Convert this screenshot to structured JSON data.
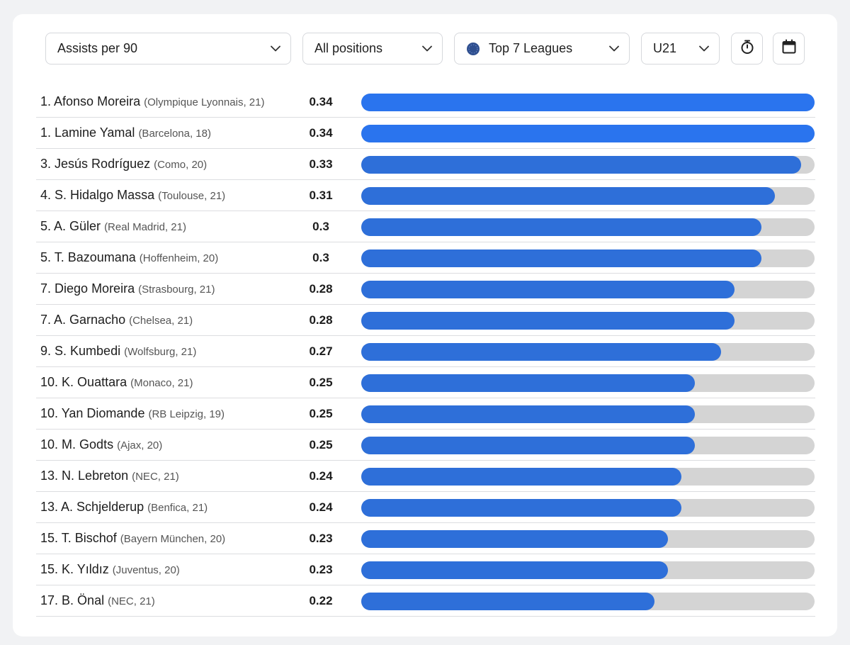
{
  "filters": {
    "metric": "Assists per 90",
    "position": "All positions",
    "league": "Top 7 Leagues",
    "age": "U21"
  },
  "icons": {
    "timer": "stopwatch-icon",
    "calendar": "calendar-icon",
    "league": "globe-icon",
    "dropdown": "chevron-down-icon"
  },
  "colors": {
    "bar_fill": "#2e6fd9",
    "bar_fill_leader": "#2a74ee",
    "bar_track": "#d4d4d4"
  },
  "max_value": 0.34,
  "players": [
    {
      "rank": "1.",
      "name": "Afonso Moreira",
      "meta": "(Olympique Lyonnais, 21)",
      "value": "0.34",
      "v": 0.34
    },
    {
      "rank": "1.",
      "name": "Lamine Yamal",
      "meta": "(Barcelona, 18)",
      "value": "0.34",
      "v": 0.34
    },
    {
      "rank": "3.",
      "name": "Jesús Rodríguez",
      "meta": "(Como, 20)",
      "value": "0.33",
      "v": 0.33
    },
    {
      "rank": "4.",
      "name": "S. Hidalgo Massa",
      "meta": "(Toulouse, 21)",
      "value": "0.31",
      "v": 0.31
    },
    {
      "rank": "5.",
      "name": "A. Güler",
      "meta": "(Real Madrid, 21)",
      "value": "0.3",
      "v": 0.3
    },
    {
      "rank": "5.",
      "name": "T. Bazoumana",
      "meta": "(Hoffenheim, 20)",
      "value": "0.3",
      "v": 0.3
    },
    {
      "rank": "7.",
      "name": "Diego Moreira",
      "meta": "(Strasbourg, 21)",
      "value": "0.28",
      "v": 0.28
    },
    {
      "rank": "7.",
      "name": "A. Garnacho",
      "meta": "(Chelsea, 21)",
      "value": "0.28",
      "v": 0.28
    },
    {
      "rank": "9.",
      "name": "S. Kumbedi",
      "meta": "(Wolfsburg, 21)",
      "value": "0.27",
      "v": 0.27
    },
    {
      "rank": "10.",
      "name": "K. Ouattara",
      "meta": "(Monaco, 21)",
      "value": "0.25",
      "v": 0.25
    },
    {
      "rank": "10.",
      "name": "Yan Diomande",
      "meta": "(RB Leipzig, 19)",
      "value": "0.25",
      "v": 0.25
    },
    {
      "rank": "10.",
      "name": "M. Godts",
      "meta": "(Ajax, 20)",
      "value": "0.25",
      "v": 0.25
    },
    {
      "rank": "13.",
      "name": "N. Lebreton",
      "meta": "(NEC, 21)",
      "value": "0.24",
      "v": 0.24
    },
    {
      "rank": "13.",
      "name": "A. Schjelderup",
      "meta": "(Benfica, 21)",
      "value": "0.24",
      "v": 0.24
    },
    {
      "rank": "15.",
      "name": "T. Bischof",
      "meta": "(Bayern München, 20)",
      "value": "0.23",
      "v": 0.23
    },
    {
      "rank": "15.",
      "name": "K. Yıldız",
      "meta": "(Juventus, 20)",
      "value": "0.23",
      "v": 0.23
    },
    {
      "rank": "17.",
      "name": "B. Önal",
      "meta": "(NEC, 21)",
      "value": "0.22",
      "v": 0.22
    }
  ]
}
